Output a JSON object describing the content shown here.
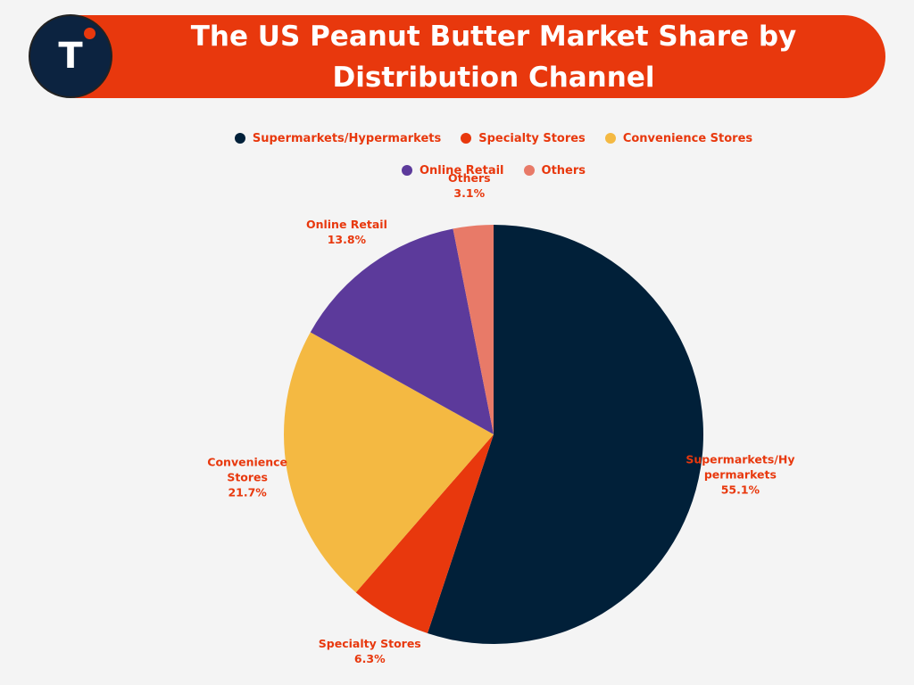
{
  "logo": "T",
  "chart_data": {
    "type": "pie",
    "title": "The US Peanut Butter Market Share by Distribution Channel",
    "categories": [
      "Supermarkets/Hypermarkets",
      "Specialty Stores",
      "Convenience Stores",
      "Online Retail",
      "Others"
    ],
    "values": [
      55.1,
      6.3,
      21.7,
      13.8,
      3.1
    ],
    "value_labels": [
      "55.1%",
      "6.3%",
      "21.7%",
      "13.8%",
      "3.1%"
    ],
    "colors": [
      "#012039",
      "#e8380d",
      "#f4b942",
      "#5c3a9b",
      "#e87a68"
    ],
    "legend": "top"
  }
}
